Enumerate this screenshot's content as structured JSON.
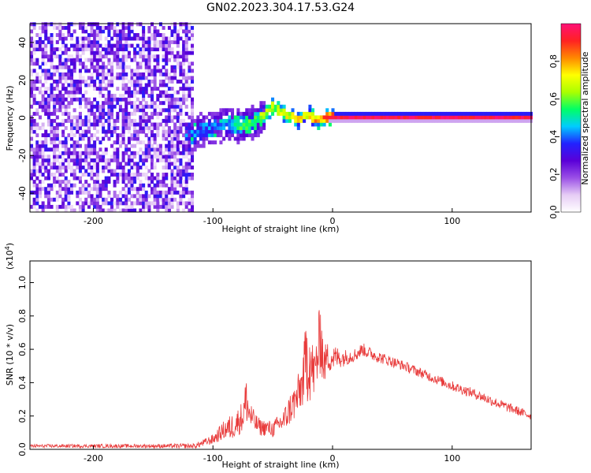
{
  "title": "GN02.2023.304.17.53.G24",
  "chart_data": [
    {
      "type": "heatmap",
      "title": "GN02.2023.304.17.53.G24",
      "xlabel": "Height of straight line (km)",
      "ylabel": "Frequency (Hz)",
      "xlim": [
        -253,
        166
      ],
      "ylim": [
        -50,
        50
      ],
      "xticks": [
        -200,
        -100,
        0,
        100
      ],
      "yticks": [
        -40,
        -20,
        0,
        20,
        40
      ],
      "colorbar": {
        "label": "Normalized spectral amplitude",
        "range": [
          0,
          1
        ],
        "ticks": [
          0.0,
          0.2,
          0.4,
          0.6,
          0.8
        ],
        "colors": [
          "#ffffff",
          "#e6ccf5",
          "#9a4fe6",
          "#5a00d8",
          "#2222ff",
          "#00ccff",
          "#00ff66",
          "#aaff00",
          "#ffff00",
          "#ff8800",
          "#ff2222",
          "#ff1177"
        ]
      },
      "regions": [
        {
          "name": "noise",
          "x": [
            -253,
            -117
          ],
          "freq": [
            -50,
            50
          ],
          "amplitude": [
            0.05,
            0.35
          ]
        },
        {
          "name": "wander",
          "x": [
            -125,
            -58
          ],
          "freq": [
            -22,
            7
          ],
          "amplitude": [
            0.2,
            0.5
          ]
        },
        {
          "name": "locked",
          "x": [
            -5,
            166
          ],
          "freq": [
            0,
            0
          ],
          "amplitude": [
            0.9,
            1.0
          ]
        }
      ],
      "signal_track": {
        "x": [
          -120,
          -110,
          -100,
          -90,
          -80,
          -70,
          -60,
          -52,
          -45,
          -40,
          -35,
          -30,
          -25,
          -20,
          -15,
          -10,
          -5,
          0,
          166
        ],
        "freq": [
          -10,
          -7,
          -6,
          -4,
          -5,
          -4,
          0,
          5,
          3,
          1,
          0,
          -2,
          0,
          1,
          -2,
          -2,
          0,
          0,
          0
        ],
        "amplitude": [
          0.35,
          0.4,
          0.45,
          0.5,
          0.6,
          0.65,
          0.7,
          0.7,
          0.75,
          0.8,
          0.8,
          0.8,
          0.85,
          0.85,
          0.9,
          0.9,
          0.95,
          1.0,
          1.0
        ]
      }
    },
    {
      "type": "line",
      "xlabel": "Height of straight line (km)",
      "ylabel": "SNR (10 * v/v)",
      "scale_label": "(x10",
      "scale_exponent": "4",
      "scale_close": ")",
      "xlim": [
        -253,
        166
      ],
      "ylim": [
        0,
        1.13
      ],
      "xticks": [
        -200,
        -100,
        0,
        100
      ],
      "yticks": [
        0.0,
        0.2,
        0.4,
        0.6,
        0.8,
        1.0
      ],
      "line_color": "#e83a3a",
      "envelope": {
        "x": [
          -253,
          -150,
          -115,
          -100,
          -90,
          -85,
          -80,
          -75,
          -72,
          -70,
          -65,
          -60,
          -55,
          -50,
          -45,
          -40,
          -35,
          -30,
          -25,
          -22,
          -20,
          -18,
          -15,
          -13,
          -11,
          -10,
          -9,
          -7,
          -5,
          0,
          10,
          20,
          25,
          30,
          40,
          60,
          80,
          100,
          120,
          140,
          166
        ],
        "mean": [
          0.02,
          0.02,
          0.02,
          0.06,
          0.12,
          0.13,
          0.16,
          0.2,
          0.3,
          0.22,
          0.16,
          0.13,
          0.13,
          0.12,
          0.15,
          0.18,
          0.25,
          0.3,
          0.4,
          0.55,
          0.6,
          0.5,
          0.45,
          0.55,
          0.6,
          0.8,
          0.6,
          0.5,
          0.55,
          0.55,
          0.55,
          0.57,
          0.6,
          0.58,
          0.55,
          0.5,
          0.44,
          0.38,
          0.33,
          0.27,
          0.2
        ],
        "noise": [
          0.01,
          0.012,
          0.015,
          0.03,
          0.06,
          0.08,
          0.08,
          0.1,
          0.15,
          0.1,
          0.06,
          0.05,
          0.05,
          0.05,
          0.06,
          0.08,
          0.1,
          0.12,
          0.15,
          0.25,
          0.35,
          0.2,
          0.15,
          0.2,
          0.25,
          0.3,
          0.2,
          0.12,
          0.1,
          0.08,
          0.05,
          0.04,
          0.04,
          0.04,
          0.035,
          0.03,
          0.03,
          0.03,
          0.03,
          0.03,
          0.025
        ]
      }
    }
  ]
}
